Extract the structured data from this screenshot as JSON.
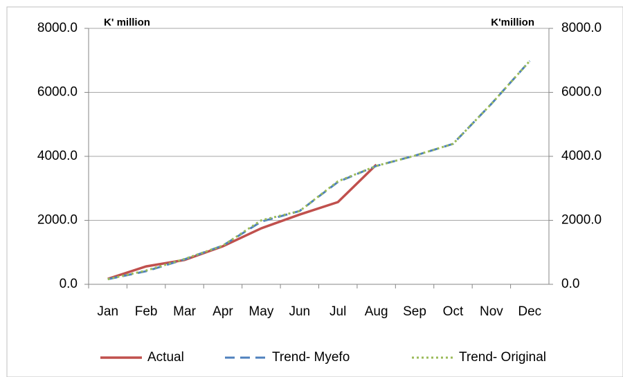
{
  "chart_data": {
    "type": "line",
    "y_label": "K' million",
    "y2_label": "K'million",
    "categories": [
      "Jan",
      "Feb",
      "Mar",
      "Apr",
      "May",
      "Jun",
      "Jul",
      "Aug",
      "Sep",
      "Oct",
      "Nov",
      "Dec"
    ],
    "series": [
      {
        "name": "Actual",
        "color": "#c0504d",
        "dash": "solid",
        "values": [
          170,
          560,
          760,
          1190,
          1750,
          2180,
          2570,
          3740,
          null,
          null,
          null,
          null
        ]
      },
      {
        "name": "Trend- Myefo",
        "color": "#4f81bd",
        "dash": "dashed",
        "values": [
          160,
          410,
          780,
          1210,
          1960,
          2290,
          3200,
          3700,
          4020,
          4390,
          5640,
          6980
        ]
      },
      {
        "name": "Trend- Original",
        "color": "#9bbb59",
        "dash": "dotted",
        "values": [
          160,
          430,
          790,
          1210,
          2000,
          2290,
          3220,
          3700,
          4020,
          4390,
          5640,
          6980
        ]
      }
    ],
    "ylim": [
      0,
      8000
    ],
    "yticks": [
      {
        "value": 0,
        "label": "0.0"
      },
      {
        "value": 2000,
        "label": "2000.0"
      },
      {
        "value": 4000,
        "label": "4000.0"
      },
      {
        "value": 6000,
        "label": "6000.0"
      },
      {
        "value": 8000,
        "label": "8000.0"
      }
    ],
    "y2lim": [
      0,
      8000
    ],
    "y2ticks": [
      {
        "value": 0,
        "label": "0.0"
      },
      {
        "value": 2000,
        "label": "2000.0"
      },
      {
        "value": 4000,
        "label": "4000.0"
      },
      {
        "value": 6000,
        "label": "6000.0"
      },
      {
        "value": 8000,
        "label": "8000.0"
      }
    ],
    "grid": true,
    "legend": "bottom"
  }
}
